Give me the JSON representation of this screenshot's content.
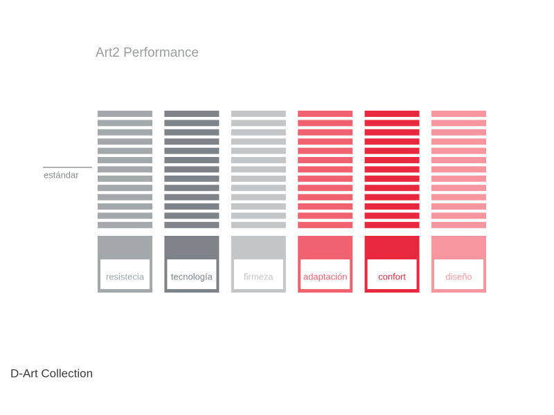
{
  "header": {
    "title": "Art2 Performance"
  },
  "marker": {
    "label": "estándar"
  },
  "columns": [
    {
      "label": "resistecia",
      "color": "#a3a8ab",
      "segments": 13
    },
    {
      "label": "tecnología",
      "color": "#7e8389",
      "segments": 13
    },
    {
      "label": "firmeza",
      "color": "#c3c5c7",
      "segments": 13
    },
    {
      "label": "adaptación",
      "color": "#f0626f",
      "segments": 13
    },
    {
      "label": "confort",
      "color": "#e8283f",
      "segments": 13
    },
    {
      "label": "diseño",
      "color": "#f7969f",
      "segments": 13
    }
  ],
  "footer": {
    "label": "D-Art Collection"
  }
}
